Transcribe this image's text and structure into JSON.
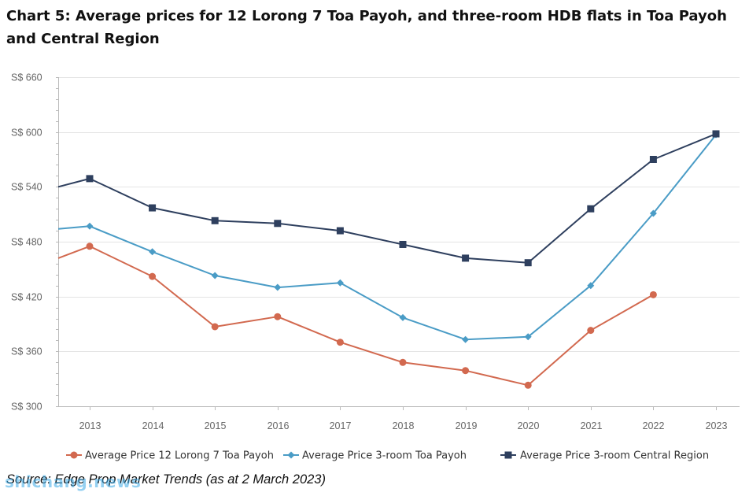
{
  "chart_data": {
    "type": "line",
    "title": "Chart 5: Average prices for 12 Lorong 7 Toa Payoh, and three-room HDB flats in Toa Payoh and Central Region",
    "source": "Source: Edge Prop Market Trends (as at 2 March 2023)",
    "watermark": "shichang.news",
    "xlabel": "",
    "ylabel": "",
    "x": [
      2013,
      2014,
      2015,
      2016,
      2017,
      2018,
      2019,
      2020,
      2021,
      2022,
      2023
    ],
    "x_range": [
      2012.5,
      2023.35
    ],
    "y_ticks": [
      300,
      360,
      420,
      480,
      540,
      600,
      660
    ],
    "y_tick_labels": [
      "S$ 300",
      "S$ 360",
      "S$ 420",
      "S$ 480",
      "S$ 540",
      "S$ 600",
      "S$ 660"
    ],
    "ylim": [
      300,
      660
    ],
    "grid": true,
    "legend_position": "bottom",
    "series": [
      {
        "name": "Average Price 12 Lorong 7 Toa Payoh",
        "color": "#d2694f",
        "marker": "circle",
        "start_value": 462,
        "values": [
          475,
          442,
          387,
          398,
          370,
          348,
          339,
          323,
          383,
          422,
          null
        ]
      },
      {
        "name": "Average Price 3-room Toa Payoh",
        "color": "#4a9cc6",
        "marker": "diamond",
        "start_value": 494,
        "values": [
          497,
          469,
          443,
          430,
          435,
          397,
          373,
          376,
          432,
          511,
          597
        ]
      },
      {
        "name": "Average Price 3-room Central Region",
        "color": "#2e3f5e",
        "marker": "square",
        "start_value": 540,
        "values": [
          549,
          517,
          503,
          500,
          492,
          477,
          462,
          457,
          516,
          570,
          598
        ]
      }
    ]
  }
}
